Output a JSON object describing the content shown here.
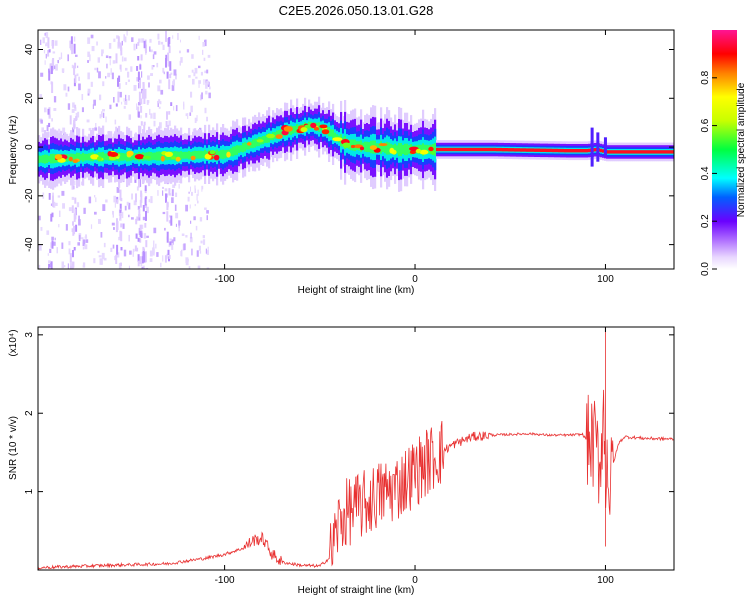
{
  "chart_data": [
    {
      "type": "heatmap",
      "title": "C2E5.2026.050.13.01.G28",
      "xlabel": "Height of straight line (km)",
      "ylabel": "Frequency (Hz)",
      "xlim": [
        -198,
        136
      ],
      "ylim": [
        -50,
        48
      ],
      "xticks": [
        -100,
        0,
        100
      ],
      "xtick_labels": [
        "-100",
        "0",
        "100"
      ],
      "yticks": [
        -40,
        -20,
        0,
        20,
        40
      ],
      "ytick_labels": [
        "-40",
        "-20",
        "0",
        "20",
        "40"
      ],
      "colorbar": {
        "label": "Normalized spectral amplitude",
        "range": [
          0,
          1
        ],
        "ticks": [
          0,
          0.2,
          0.4,
          0.6,
          0.8
        ],
        "tick_labels": [
          "0.0",
          "0.2",
          "0.4",
          "0.6",
          "0.8"
        ]
      },
      "ridge": {
        "x": [
          -198,
          -170,
          -150,
          -125,
          -110,
          -100,
          -90,
          -80,
          -70,
          -60,
          -55,
          -50,
          -45,
          -40,
          -35,
          -30,
          -25,
          -20,
          -10,
          0,
          10,
          40,
          80,
          90,
          95,
          100,
          110,
          136
        ],
        "y": [
          -5,
          -4,
          -4,
          -3.5,
          -3,
          -3,
          0,
          3,
          6,
          8,
          9,
          8,
          6,
          3,
          1,
          0.5,
          0,
          0,
          -1,
          -1,
          -1,
          -1,
          -1.5,
          -1.5,
          -1,
          -2,
          -2,
          -2
        ]
      }
    },
    {
      "type": "line",
      "xlabel": "Height of straight line (km)",
      "ylabel": "SNR (10 * v/v)",
      "scale_label": "(x10⁴)",
      "xlim": [
        -198,
        136
      ],
      "ylim": [
        0,
        3.1
      ],
      "xticks": [
        -100,
        0,
        100
      ],
      "xtick_labels": [
        "-100",
        "0",
        "100"
      ],
      "yticks": [
        1,
        2,
        3
      ],
      "ytick_labels": [
        "1",
        "2",
        "3"
      ],
      "series": [
        {
          "name": "SNR",
          "color": "#e83030",
          "x": [
            -198,
            -160,
            -130,
            -110,
            -100,
            -90,
            -85,
            -80,
            -75,
            -70,
            -60,
            -50,
            -45,
            -40,
            -35,
            -30,
            -25,
            -20,
            -15,
            -10,
            -5,
            0,
            10,
            20,
            30,
            40,
            50,
            60,
            70,
            80,
            88,
            92,
            95,
            97,
            99,
            100,
            101,
            102,
            104,
            107,
            110,
            120,
            136
          ],
          "values": [
            0.03,
            0.06,
            0.08,
            0.15,
            0.2,
            0.28,
            0.38,
            0.4,
            0.2,
            0.1,
            0.06,
            0.05,
            0.15,
            0.6,
            0.75,
            0.8,
            0.85,
            0.95,
            1.0,
            1.05,
            1.15,
            1.25,
            1.45,
            1.6,
            1.7,
            1.72,
            1.73,
            1.74,
            1.72,
            1.72,
            1.73,
            1.6,
            1.6,
            1.3,
            2.1,
            1.1,
            1.7,
            0.9,
            1.35,
            1.62,
            1.7,
            1.68,
            1.67
          ]
        }
      ]
    }
  ]
}
